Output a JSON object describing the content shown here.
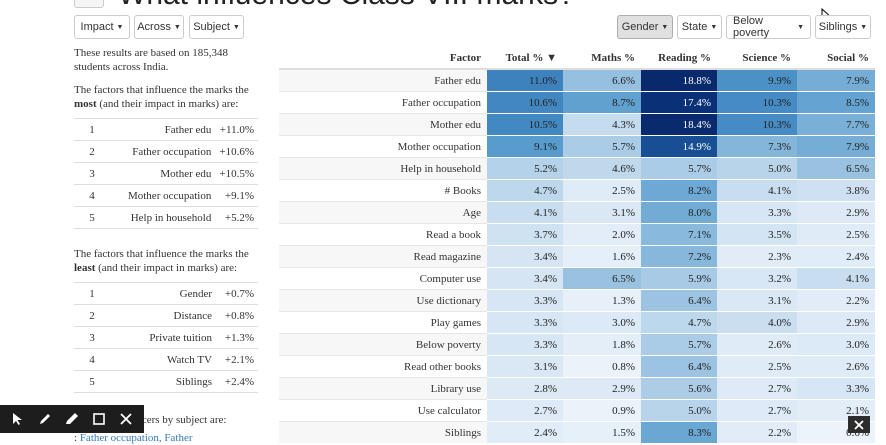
{
  "page": {
    "title": "What influences Class VIII marks?"
  },
  "filters_left": [
    {
      "label": "Impact"
    },
    {
      "label": "Across"
    },
    {
      "label": "Subject"
    }
  ],
  "filters_right": [
    {
      "label": "Gender",
      "active": true
    },
    {
      "label": "State"
    },
    {
      "label": "Below poverty"
    },
    {
      "label": "Siblings"
    }
  ],
  "summary": {
    "intro": "These results are based on 185,348 students across India.",
    "most_pre": "The factors that influence the marks the",
    "most_word": "most",
    "most_post": "(and their impact in marks) are:",
    "most": [
      {
        "rank": "1",
        "factor": "Father edu",
        "impact": "+11.0%"
      },
      {
        "rank": "2",
        "factor": "Father occupation",
        "impact": "+10.6%"
      },
      {
        "rank": "3",
        "factor": "Mother edu",
        "impact": "+10.5%"
      },
      {
        "rank": "4",
        "factor": "Mother occupation",
        "impact": "+9.1%"
      },
      {
        "rank": "5",
        "factor": "Help in household",
        "impact": "+5.2%"
      }
    ],
    "least_pre": "The factors that influence the marks the",
    "least_word": "least",
    "least_post": "(and their impact in marks) are:",
    "least": [
      {
        "rank": "1",
        "factor": "Gender",
        "impact": "+0.7%"
      },
      {
        "rank": "2",
        "factor": "Distance",
        "impact": "+0.8%"
      },
      {
        "rank": "3",
        "factor": "Private tuition",
        "impact": "+1.3%"
      },
      {
        "rank": "4",
        "factor": "Watch TV",
        "impact": "+2.1%"
      },
      {
        "rank": "5",
        "factor": "Siblings",
        "impact": "+2.4%"
      }
    ],
    "subject_intro": "The top influencers by subject are:",
    "subject_link_prefix": ":",
    "subject_link": "Father occupation, Father"
  },
  "table": {
    "columns": [
      "Factor",
      "Total % ▼",
      "Maths %",
      "Reading %",
      "Science %",
      "Social %"
    ],
    "rows": [
      {
        "factor": "Father edu",
        "values": [
          "11.0%",
          "6.6%",
          "18.8%",
          "9.9%",
          "7.9%"
        ]
      },
      {
        "factor": "Father occupation",
        "values": [
          "10.6%",
          "8.7%",
          "17.4%",
          "10.3%",
          "8.5%"
        ]
      },
      {
        "factor": "Mother edu",
        "values": [
          "10.5%",
          "4.3%",
          "18.4%",
          "10.3%",
          "7.7%"
        ]
      },
      {
        "factor": "Mother occupation",
        "values": [
          "9.1%",
          "5.7%",
          "14.9%",
          "7.3%",
          "7.9%"
        ]
      },
      {
        "factor": "Help in household",
        "values": [
          "5.2%",
          "4.6%",
          "5.7%",
          "5.0%",
          "6.5%"
        ]
      },
      {
        "factor": "# Books",
        "values": [
          "4.7%",
          "2.5%",
          "8.2%",
          "4.1%",
          "3.8%"
        ]
      },
      {
        "factor": "Age",
        "values": [
          "4.1%",
          "3.1%",
          "8.0%",
          "3.3%",
          "2.9%"
        ]
      },
      {
        "factor": "Read a book",
        "values": [
          "3.7%",
          "2.0%",
          "7.1%",
          "3.5%",
          "2.5%"
        ]
      },
      {
        "factor": "Read magazine",
        "values": [
          "3.4%",
          "1.6%",
          "7.2%",
          "2.3%",
          "2.4%"
        ]
      },
      {
        "factor": "Computer use",
        "values": [
          "3.4%",
          "6.5%",
          "5.9%",
          "3.2%",
          "4.1%"
        ]
      },
      {
        "factor": "Use dictionary",
        "values": [
          "3.3%",
          "1.3%",
          "6.4%",
          "3.1%",
          "2.2%"
        ]
      },
      {
        "factor": "Play games",
        "values": [
          "3.3%",
          "3.0%",
          "4.7%",
          "4.0%",
          "2.9%"
        ]
      },
      {
        "factor": "Below poverty",
        "values": [
          "3.3%",
          "1.8%",
          "5.7%",
          "2.6%",
          "3.0%"
        ]
      },
      {
        "factor": "Read other books",
        "values": [
          "3.1%",
          "0.8%",
          "6.4%",
          "2.5%",
          "2.6%"
        ]
      },
      {
        "factor": "Library use",
        "values": [
          "2.8%",
          "2.9%",
          "5.6%",
          "2.7%",
          "3.3%"
        ]
      },
      {
        "factor": "Use calculator",
        "values": [
          "2.7%",
          "0.9%",
          "5.0%",
          "2.7%",
          "2.1%"
        ]
      },
      {
        "factor": "Siblings",
        "values": [
          "2.4%",
          "1.5%",
          "8.3%",
          "2.2%",
          "0.6%"
        ]
      }
    ]
  }
}
